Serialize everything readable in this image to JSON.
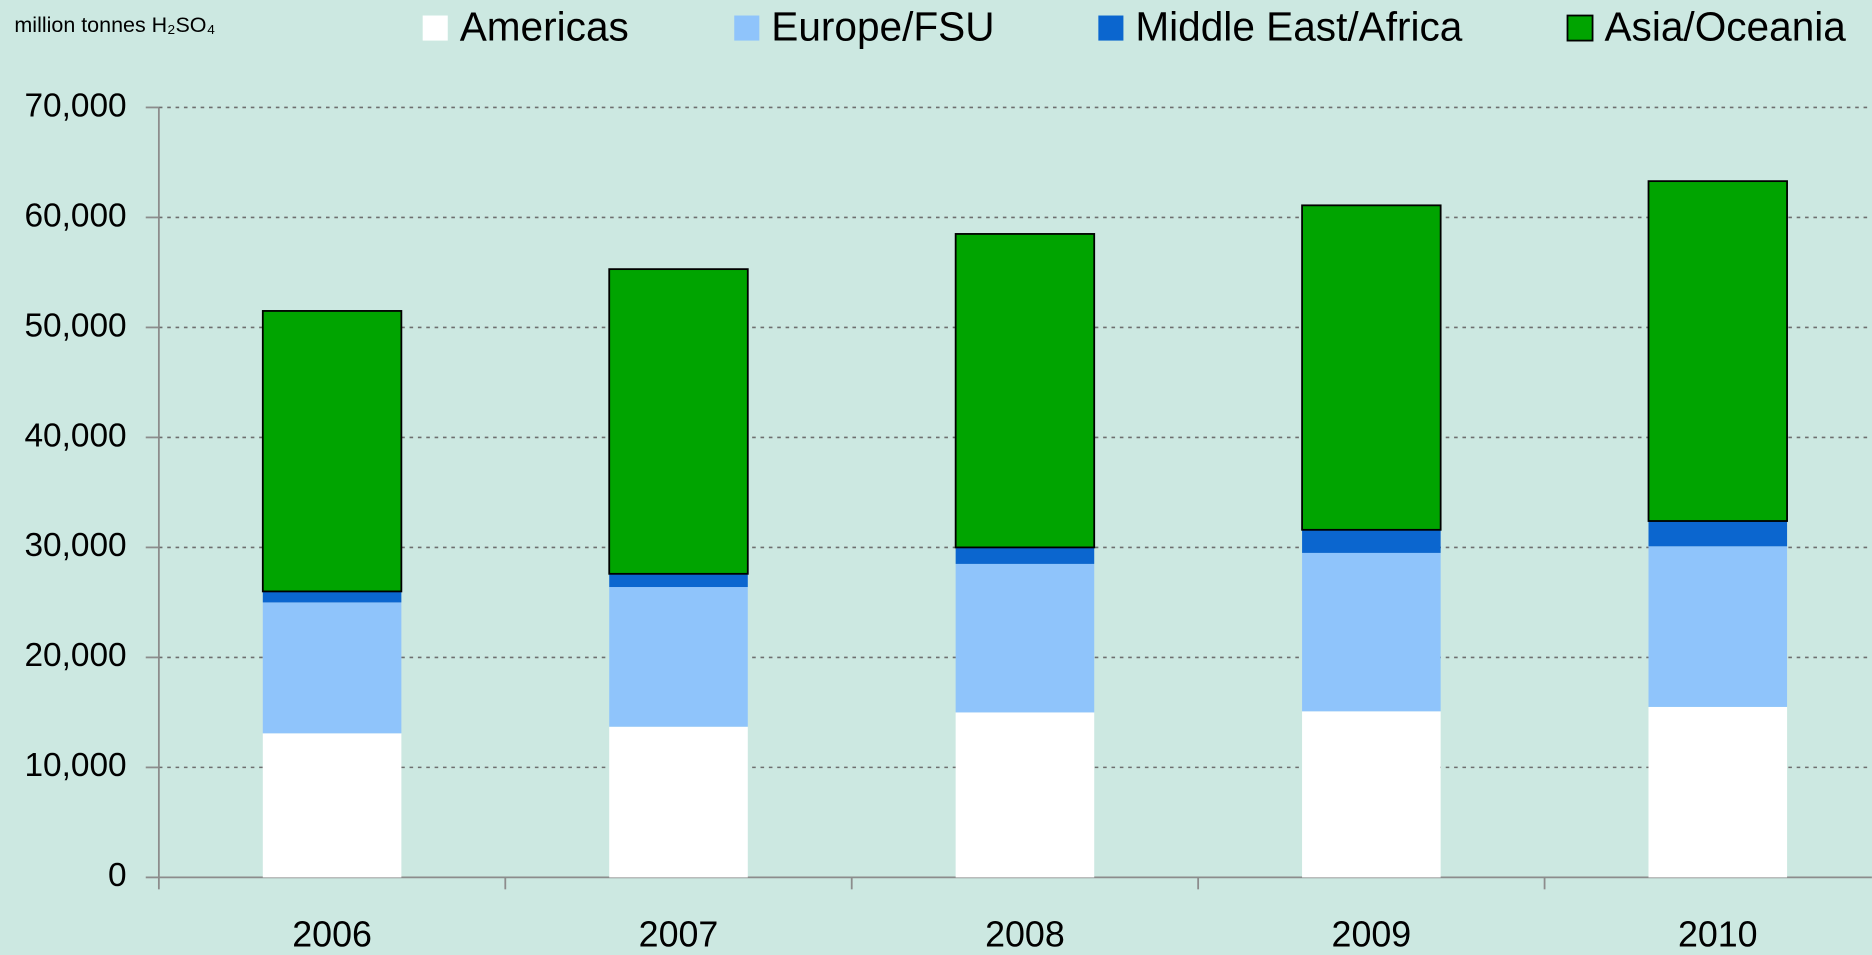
{
  "chart_data": {
    "type": "stacked_bar",
    "y_label": "million tonnes H₂SO₄",
    "categories": [
      "2006",
      "2007",
      "2008",
      "2009",
      "2010"
    ],
    "series": [
      {
        "name": "Americas",
        "color": "#ffffff",
        "values": [
          13100,
          13700,
          15000,
          15100,
          15500
        ]
      },
      {
        "name": "Europe/FSU",
        "color": "#8fc4fb",
        "values": [
          11900,
          12700,
          13500,
          14400,
          14600
        ]
      },
      {
        "name": "Middle East/Africa",
        "color": "#0b66cf",
        "values": [
          1000,
          1200,
          1500,
          2100,
          2300
        ]
      },
      {
        "name": "Asia/Oceania",
        "color": "#00a400",
        "values": [
          25500,
          27700,
          28500,
          29500,
          30900
        ]
      }
    ],
    "ylim": [
      0,
      70000
    ],
    "yticks": [
      0,
      {
        "value": 10000,
        "label": "10,000"
      },
      {
        "value": 20000,
        "label": "20,000"
      },
      {
        "value": 30000,
        "label": "30,000"
      },
      {
        "value": 40000,
        "label": "40,000"
      },
      {
        "value": 50000,
        "label": "50,000"
      },
      {
        "value": 60000,
        "label": "60,000"
      },
      {
        "value": 70000,
        "label": "70,000"
      }
    ],
    "grid": true,
    "legend": "top"
  }
}
